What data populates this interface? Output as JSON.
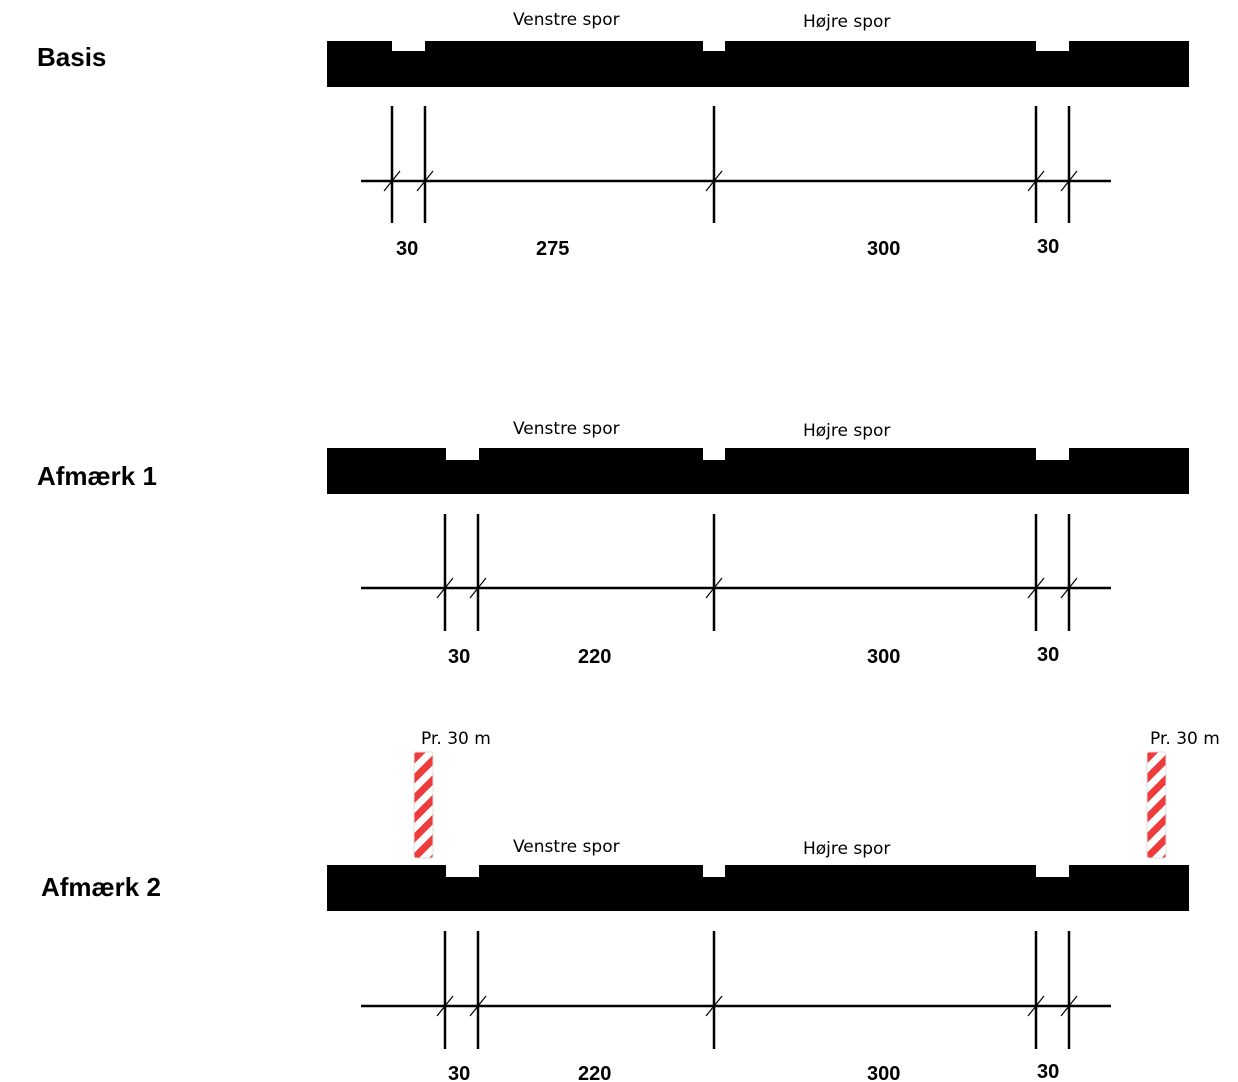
{
  "sections": [
    {
      "title": "Basis",
      "left_lane": "Venstre spor",
      "right_lane": "Højre spor",
      "dimensions": [
        "30",
        "275",
        "300",
        "30"
      ]
    },
    {
      "title": "Afmærk 1",
      "left_lane": "Venstre spor",
      "right_lane": "Højre spor",
      "dimensions": [
        "30",
        "220",
        "300",
        "30"
      ]
    },
    {
      "title": "Afmærk 2",
      "left_lane": "Venstre spor",
      "right_lane": "Højre spor",
      "dimensions": [
        "30",
        "220",
        "300",
        "30"
      ],
      "posts": [
        {
          "label": "Pr. 30 m",
          "color": "#ee3b3b"
        },
        {
          "label": "Pr. 30 m",
          "color": "#ee3b3b"
        }
      ]
    }
  ],
  "colors": {
    "road": "#000000",
    "marking": "#ffffff",
    "post_stripe": "#ee3b3b"
  }
}
